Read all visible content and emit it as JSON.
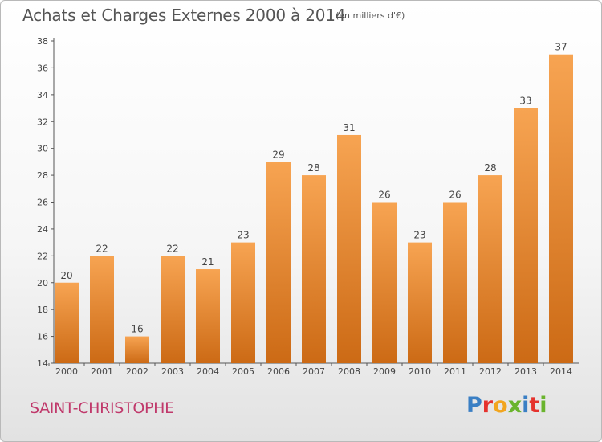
{
  "header": {
    "title": "Achats et Charges Externes 2000 à 2014",
    "unit": "(en milliers d'€)"
  },
  "footer": {
    "city": "SAINT-CHRISTOPHE",
    "logo": "Proxiti",
    "logo_colors": [
      "#3a7fc4",
      "#e5322d",
      "#f2a51e",
      "#6ab42d",
      "#3a7fc4",
      "#e5322d",
      "#6ab42d"
    ]
  },
  "colors": {
    "bar_top": "#f7a452",
    "bar_bottom": "#cc6a15"
  },
  "chart_data": {
    "type": "bar",
    "categories": [
      "2000",
      "2001",
      "2002",
      "2003",
      "2004",
      "2005",
      "2006",
      "2007",
      "2008",
      "2009",
      "2010",
      "2011",
      "2012",
      "2013",
      "2014"
    ],
    "values": [
      20,
      22,
      16,
      22,
      21,
      23,
      29,
      28,
      31,
      26,
      23,
      26,
      28,
      33,
      37
    ],
    "ylim": [
      14,
      38
    ],
    "yticks": [
      14,
      16,
      18,
      20,
      22,
      24,
      26,
      28,
      30,
      32,
      34,
      36,
      38
    ],
    "grid": false
  }
}
